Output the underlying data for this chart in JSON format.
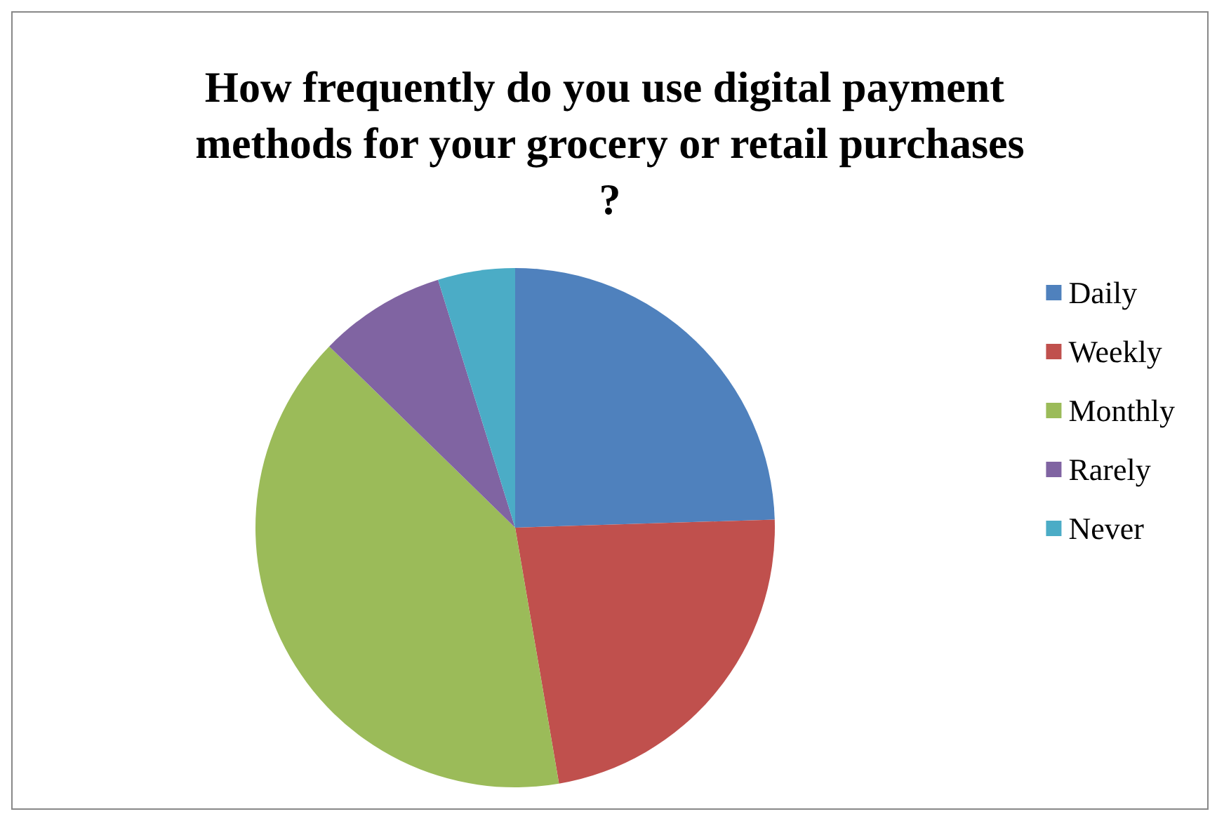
{
  "chart_data": {
    "type": "pie",
    "title": "How frequently do you use digital payment methods for your grocery or retail purchases?",
    "categories": [
      "Daily",
      "Weekly",
      "Monthly",
      "Rarely",
      "Never"
    ],
    "values": [
      24.5,
      22.8,
      40,
      7.9,
      4.8
    ],
    "colors": [
      "#4f81bd",
      "#c0504d",
      "#9bbb59",
      "#8064a2",
      "#4bacc6"
    ],
    "legend": "right"
  }
}
